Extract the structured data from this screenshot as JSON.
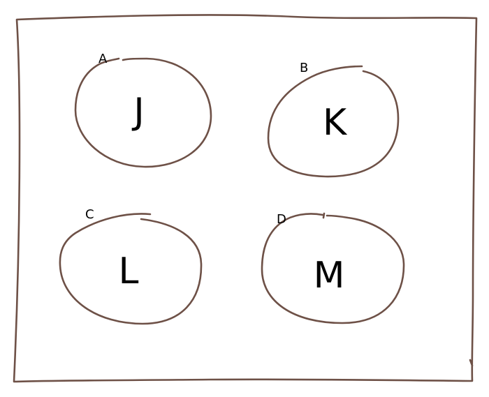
{
  "colors": {
    "ink": "#6e5147",
    "text": "#000000"
  },
  "circles": [
    {
      "id": "a",
      "tag": "A",
      "letter": "J"
    },
    {
      "id": "b",
      "tag": "B",
      "letter": "K"
    },
    {
      "id": "c",
      "tag": "C",
      "letter": "L"
    },
    {
      "id": "d",
      "tag": "D",
      "letter": "M"
    }
  ]
}
